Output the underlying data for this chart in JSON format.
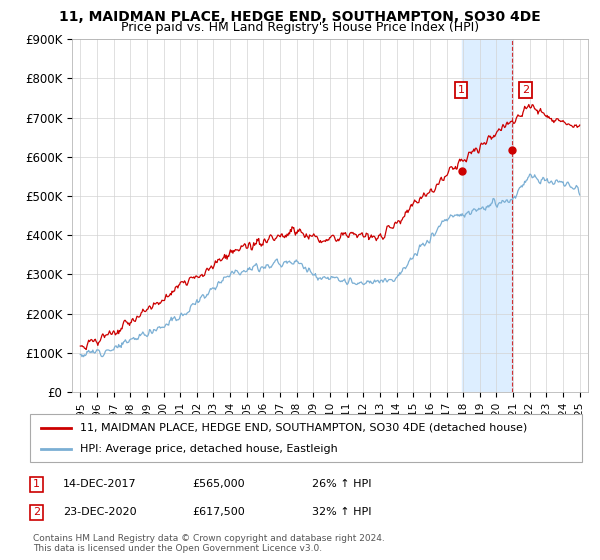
{
  "title": "11, MAIDMAN PLACE, HEDGE END, SOUTHAMPTON, SO30 4DE",
  "subtitle": "Price paid vs. HM Land Registry's House Price Index (HPI)",
  "legend_line1": "11, MAIDMAN PLACE, HEDGE END, SOUTHAMPTON, SO30 4DE (detached house)",
  "legend_line2": "HPI: Average price, detached house, Eastleigh",
  "footnote": "Contains HM Land Registry data © Crown copyright and database right 2024.\nThis data is licensed under the Open Government Licence v3.0.",
  "annotation1_label": "1",
  "annotation1_date": "14-DEC-2017",
  "annotation1_price": "£565,000",
  "annotation1_hpi": "26% ↑ HPI",
  "annotation2_label": "2",
  "annotation2_date": "23-DEC-2020",
  "annotation2_price": "£617,500",
  "annotation2_hpi": "32% ↑ HPI",
  "red_color": "#cc0000",
  "blue_color": "#7bafd4",
  "highlight_color": "#ddeeff",
  "sale1_x": 2017.96,
  "sale1_y": 565000,
  "sale2_x": 2020.96,
  "sale2_y": 617500,
  "ylim": [
    0,
    900000
  ],
  "xlim": [
    1994.5,
    2025.5
  ],
  "yticks": [
    0,
    100000,
    200000,
    300000,
    400000,
    500000,
    600000,
    700000,
    800000,
    900000
  ],
  "ytick_labels": [
    "£0",
    "£100K",
    "£200K",
    "£300K",
    "£400K",
    "£500K",
    "£600K",
    "£700K",
    "£800K",
    "£900K"
  ]
}
